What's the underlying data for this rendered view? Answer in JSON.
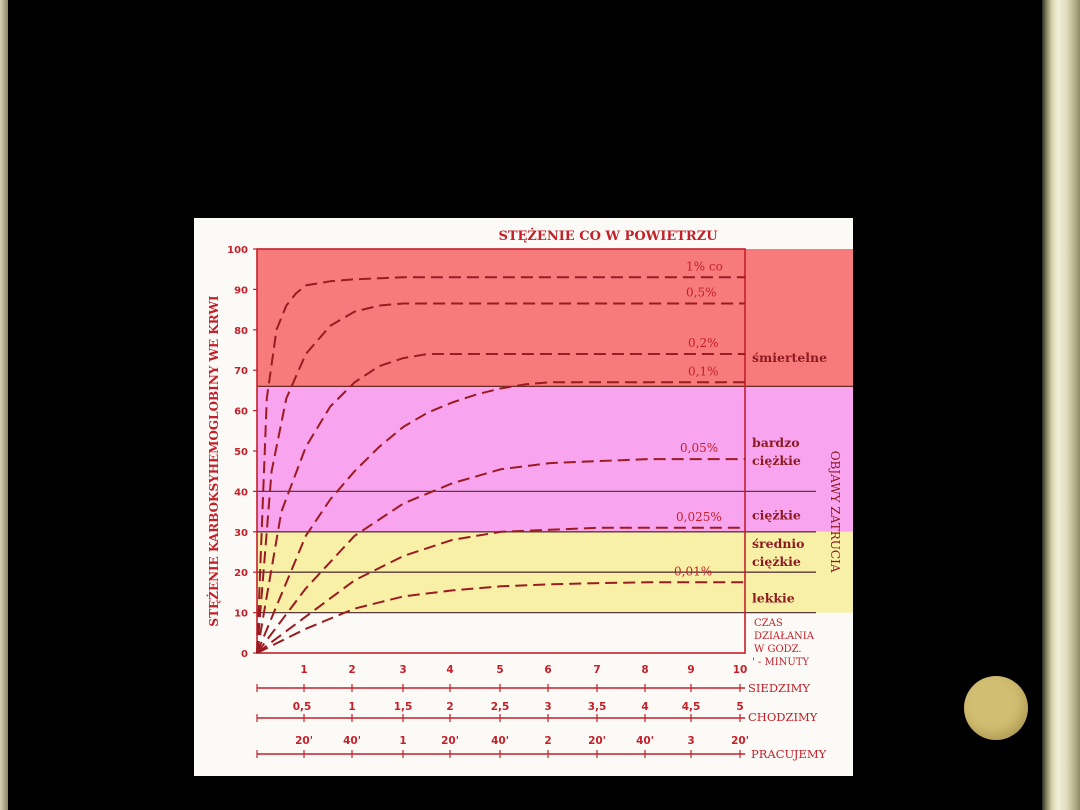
{
  "chart_data": {
    "type": "line",
    "title": "STĘŻENIE CO W POWIETRZU",
    "ylabel": "STĘŻENIE KARBOKSYHEMOGLOBINY WE KRWI",
    "right_label": "OBJAWY ZATRUCIA",
    "ylim": [
      0,
      100
    ],
    "y_ticks": [
      "0",
      "10",
      "20",
      "30",
      "40",
      "50",
      "60",
      "70",
      "80",
      "90",
      "100"
    ],
    "xlim": [
      0,
      10
    ],
    "x_axes": [
      {
        "label": "CZAS DZIAŁANIA W GODZ. ' - MINUTY",
        "ticks": [
          "1",
          "2",
          "3",
          "4",
          "5",
          "6",
          "7",
          "8",
          "9",
          "10"
        ]
      },
      {
        "label": "SIEDZIMY",
        "ticks": []
      },
      {
        "label": "CHODZIMY",
        "ticks": [
          "0,5",
          "1",
          "1,5",
          "2",
          "2,5",
          "3",
          "3,5",
          "4",
          "4,5",
          "5"
        ]
      },
      {
        "label": "PRACUJEMY",
        "ticks": [
          "20'",
          "40'",
          "1",
          "20'",
          "40'",
          "2",
          "20'",
          "40'",
          "3",
          "20'"
        ]
      }
    ],
    "zones": [
      {
        "label": "śmiertelne",
        "from": 66,
        "to": 100,
        "color": "#f77b7b"
      },
      {
        "label": "bardzo ciężkie",
        "from": 40,
        "to": 66,
        "color": "#f8a4ef"
      },
      {
        "label": "ciężkie",
        "from": 30,
        "to": 40,
        "color": "#f8a4ef"
      },
      {
        "label": "średnio ciężkie",
        "from": 20,
        "to": 30,
        "color": "#f7f0a6"
      },
      {
        "label": "lekkie",
        "from": 10,
        "to": 20,
        "color": "#f7f0a6"
      }
    ],
    "series": [
      {
        "name": "1% co",
        "x": [
          0,
          0.2,
          0.4,
          0.6,
          0.8,
          1,
          1.5,
          2,
          3,
          4,
          5,
          6,
          7,
          8,
          9,
          10
        ],
        "y": [
          0,
          63,
          80,
          86,
          89,
          91,
          92,
          92.5,
          93,
          93,
          93,
          93,
          93,
          93,
          93,
          93
        ]
      },
      {
        "name": "0,5%",
        "x": [
          0,
          0.3,
          0.6,
          1,
          1.5,
          2,
          2.5,
          3,
          4,
          5,
          6,
          7,
          8,
          9,
          10
        ],
        "y": [
          0,
          45,
          63,
          74,
          81,
          84.5,
          86,
          86.5,
          86.5,
          86.5,
          86.5,
          86.5,
          86.5,
          86.5,
          86.5
        ]
      },
      {
        "name": "0,2%",
        "x": [
          0,
          0.5,
          1,
          1.5,
          2,
          2.5,
          3,
          3.5,
          4,
          5,
          6,
          7,
          8,
          9,
          10
        ],
        "y": [
          0,
          35,
          51,
          61,
          67,
          71,
          73,
          74,
          74,
          74,
          74,
          74,
          74,
          74,
          74
        ]
      },
      {
        "name": "0,1%",
        "x": [
          0,
          1,
          1.5,
          2,
          2.5,
          3,
          3.5,
          4,
          4.5,
          5,
          5.5,
          6,
          7,
          8,
          9,
          10
        ],
        "y": [
          0,
          29,
          38,
          45,
          51,
          56,
          59.5,
          62,
          64,
          65.5,
          66.5,
          67,
          67,
          67,
          67,
          67
        ]
      },
      {
        "name": "0,05%",
        "x": [
          0,
          1,
          2,
          3,
          4,
          5,
          6,
          7,
          8,
          9,
          10
        ],
        "y": [
          0,
          16,
          29,
          37,
          42,
          45.5,
          47,
          47.5,
          48,
          48,
          48
        ]
      },
      {
        "name": "0,025%",
        "x": [
          0,
          1,
          2,
          3,
          4,
          5,
          6,
          7,
          8,
          9,
          10
        ],
        "y": [
          0,
          9,
          18,
          24,
          28,
          30,
          30.5,
          31,
          31,
          31,
          31
        ]
      },
      {
        "name": "0,01%",
        "x": [
          0,
          1,
          2,
          3,
          4,
          5,
          6,
          7,
          8,
          9,
          10
        ],
        "y": [
          0,
          6,
          11,
          14,
          15.5,
          16.5,
          17,
          17.3,
          17.5,
          17.5,
          17.5
        ]
      }
    ]
  }
}
